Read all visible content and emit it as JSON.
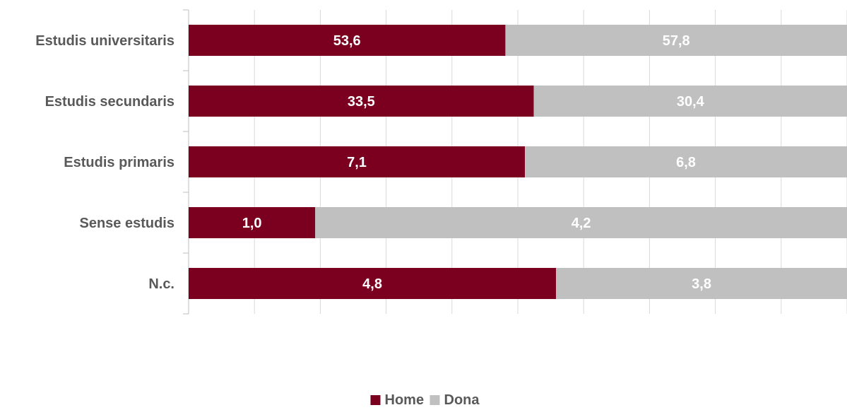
{
  "chart_data": {
    "type": "bar",
    "orientation": "horizontal",
    "stacked": "percent",
    "categories": [
      "Estudis universitaris",
      "Estudis secundaris",
      "Estudis primaris",
      "Sense estudis",
      "N.c."
    ],
    "series": [
      {
        "name": "Home",
        "color": "#7b0020",
        "values": [
          53.6,
          33.5,
          7.1,
          1.0,
          4.8
        ]
      },
      {
        "name": "Dona",
        "color": "#c0c0c0",
        "values": [
          57.8,
          30.4,
          6.8,
          4.2,
          3.8
        ]
      }
    ],
    "decimal_separator": ",",
    "title": "",
    "xlabel": "",
    "ylabel": "",
    "grid": true,
    "legend": "bottom"
  }
}
